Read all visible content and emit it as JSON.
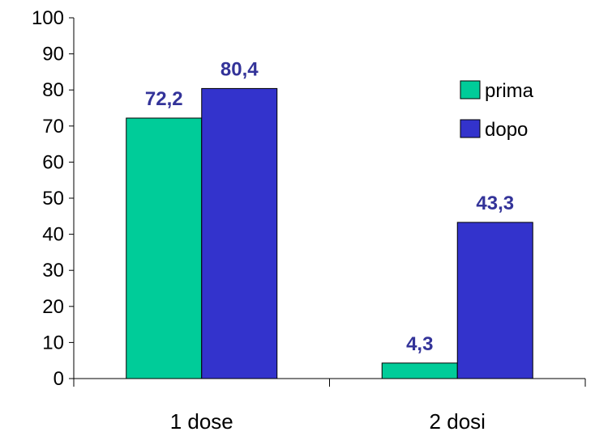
{
  "chart_data": {
    "type": "bar",
    "title": "",
    "xlabel": "",
    "ylabel": "",
    "categories": [
      "1 dose",
      "2 dosi"
    ],
    "series": [
      {
        "name": "prima",
        "values": [
          72.2,
          4.3
        ],
        "labels": [
          "72,2",
          "4,3"
        ],
        "color": "#00CC99"
      },
      {
        "name": "dopo",
        "values": [
          80.4,
          43.3
        ],
        "labels": [
          "80,4",
          "43,3"
        ],
        "color": "#3333CC"
      }
    ],
    "ylim": [
      0,
      100
    ],
    "yticks": [
      0,
      10,
      20,
      30,
      40,
      50,
      60,
      70,
      80,
      90,
      100
    ],
    "data_label_color": "#333399",
    "grid": false,
    "legend": {
      "position": "right",
      "entries": [
        "prima",
        "dopo"
      ]
    }
  }
}
